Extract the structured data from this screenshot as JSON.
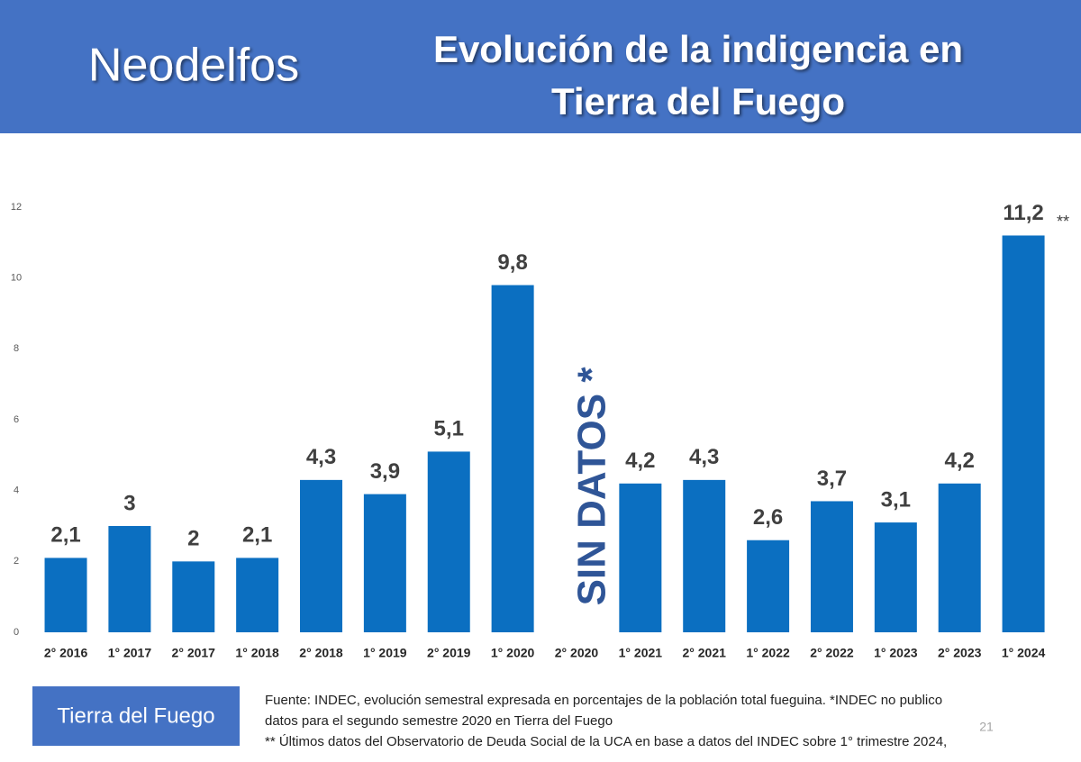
{
  "header": {
    "brand": "Neodelfos",
    "title": [
      "Evolución de la indigencia en",
      "Tierra del Fuego"
    ]
  },
  "chart_data": {
    "type": "bar",
    "categories": [
      "2° 2016",
      "1° 2017",
      "2° 2017",
      "1° 2018",
      "2° 2018",
      "1° 2019",
      "2° 2019",
      "1° 2020",
      "2° 2020",
      "1° 2021",
      "2° 2021",
      "1° 2022",
      "2° 2022",
      "1° 2023",
      "2° 2023",
      "1° 2024"
    ],
    "values": [
      2.1,
      3,
      2,
      2.1,
      4.3,
      3.9,
      5.1,
      9.8,
      null,
      4.2,
      4.3,
      2.6,
      3.7,
      3.1,
      4.2,
      11.2
    ],
    "value_labels": [
      "2,1",
      "3",
      "2",
      "2,1",
      "4,3",
      "3,9",
      "5,1",
      "9,8",
      null,
      "4,2",
      "4,3",
      "2,6",
      "3,7",
      "3,1",
      "4,2",
      "11,2"
    ],
    "color": "#0b6fc1",
    "ylim": [
      0,
      12
    ],
    "yticks": [
      0,
      2,
      4,
      6,
      8,
      10,
      12
    ],
    "grid": false,
    "annotations": [
      "SIN DATOS *",
      "**"
    ]
  },
  "footer": {
    "region": "Tierra del Fuego",
    "notes": [
      "Fuente: INDEC, evolución semestral expresada en porcentajes de la población total fueguina. *INDEC no publico",
      "datos para el segundo semestre 2020 en Tierra del Fuego",
      "** Últimos datos del Observatorio de Deuda Social de la UCA en base a datos del INDEC sobre 1° trimestre 2024,"
    ],
    "page_number": 21
  }
}
